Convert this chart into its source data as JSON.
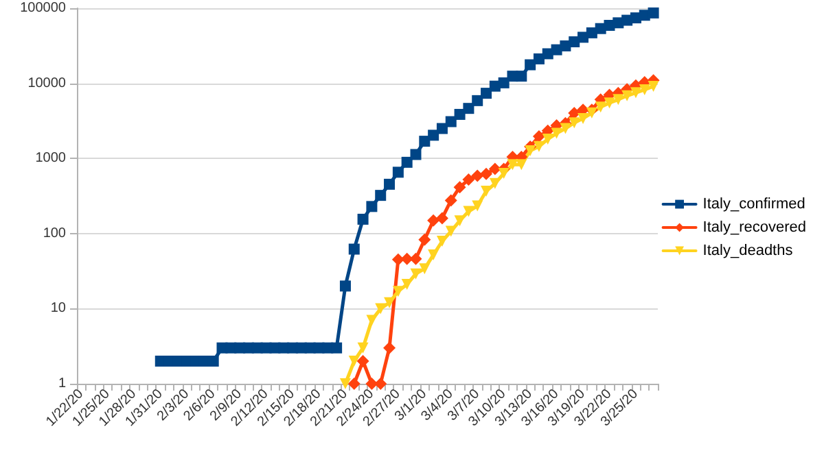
{
  "chart_data": {
    "type": "line",
    "categories": [
      "1/22/20",
      null,
      null,
      "1/25/20",
      null,
      null,
      "1/28/20",
      null,
      null,
      "1/31/20",
      null,
      null,
      "2/3/20",
      null,
      null,
      "2/6/20",
      null,
      null,
      "2/9/20",
      null,
      null,
      "2/12/20",
      null,
      null,
      "2/15/20",
      null,
      null,
      "2/18/20",
      null,
      null,
      "2/21/20",
      null,
      null,
      "2/24/20",
      null,
      null,
      "2/27/20",
      null,
      null,
      "3/1/20",
      null,
      null,
      "3/4/20",
      null,
      null,
      "3/7/20",
      null,
      null,
      "3/10/20",
      null,
      null,
      "3/13/20",
      null,
      null,
      "3/16/20",
      null,
      null,
      "3/19/20",
      null,
      null,
      "3/22/20",
      null,
      null,
      "3/25/20",
      null,
      null
    ],
    "series": [
      {
        "name": "Italy_confirmed",
        "color": "#004586",
        "marker": "square",
        "values": [
          null,
          null,
          null,
          null,
          null,
          null,
          null,
          null,
          null,
          2,
          2,
          2,
          2,
          2,
          2,
          2,
          3,
          3,
          3,
          3,
          3,
          3,
          3,
          3,
          3,
          3,
          3,
          3,
          3,
          3,
          20,
          62,
          155,
          229,
          322,
          453,
          655,
          888,
          1128,
          1694,
          2036,
          2502,
          3089,
          3858,
          4636,
          5883,
          7375,
          9172,
          10149,
          12462,
          12462,
          17660,
          21157,
          24747,
          27980,
          31506,
          35713,
          41035,
          47021,
          53578,
          59138,
          63927,
          69176,
          74386,
          80589,
          86498
        ]
      },
      {
        "name": "Italy_recovered",
        "color": "#ff420e",
        "marker": "diamond",
        "values": [
          null,
          null,
          null,
          null,
          null,
          null,
          null,
          null,
          null,
          null,
          null,
          null,
          null,
          null,
          null,
          null,
          null,
          null,
          null,
          null,
          null,
          null,
          null,
          null,
          null,
          null,
          null,
          null,
          null,
          null,
          null,
          1,
          2,
          1,
          1,
          3,
          45,
          46,
          46,
          83,
          149,
          160,
          276,
          414,
          523,
          589,
          622,
          724,
          724,
          1045,
          1045,
          1439,
          1966,
          2335,
          2749,
          2941,
          4025,
          4440,
          4440,
          6072,
          7024,
          7432,
          8326,
          9362,
          10361,
          10950
        ]
      },
      {
        "name": "Italy_deadths",
        "color": "#ffd320",
        "marker": "triangle-down",
        "values": [
          null,
          null,
          null,
          null,
          null,
          null,
          null,
          null,
          null,
          null,
          null,
          null,
          null,
          null,
          null,
          null,
          null,
          null,
          null,
          null,
          null,
          null,
          null,
          null,
          null,
          null,
          null,
          null,
          null,
          null,
          1,
          2,
          3,
          7,
          10,
          12,
          17,
          21,
          29,
          34,
          52,
          79,
          107,
          148,
          197,
          233,
          366,
          463,
          631,
          827,
          827,
          1266,
          1441,
          1809,
          2158,
          2503,
          2978,
          3405,
          4032,
          4825,
          5476,
          6077,
          6820,
          7503,
          8215,
          9134
        ]
      }
    ],
    "log": "y",
    "ylim": [
      1,
      100000
    ],
    "yticks": [
      1,
      10,
      100,
      1000,
      10000,
      100000
    ],
    "grid": "y",
    "legend": "right",
    "line_style": "solid"
  }
}
